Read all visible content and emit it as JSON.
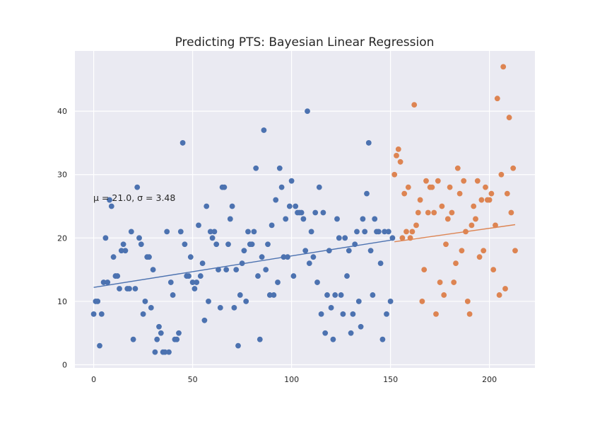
{
  "chart_data": {
    "type": "scatter",
    "title": "Predicting PTS: Bayesian Linear Regression",
    "xlabel": "",
    "ylabel": "",
    "xlim": [
      -9.5,
      223
    ],
    "ylim": [
      -0.5,
      49.5
    ],
    "xticks": [
      0,
      50,
      100,
      150,
      200
    ],
    "yticks": [
      0,
      10,
      20,
      30,
      40
    ],
    "grid": true,
    "background": "#EAEAF2",
    "annotation": "μ = 21.0,  σ = 3.48",
    "series": [
      {
        "color": "#4C72B0",
        "points": [
          [
            0,
            8
          ],
          [
            1,
            10
          ],
          [
            2,
            10
          ],
          [
            3,
            3
          ],
          [
            4,
            8
          ],
          [
            5,
            13
          ],
          [
            6,
            20
          ],
          [
            7,
            13
          ],
          [
            8,
            26
          ],
          [
            9,
            25
          ],
          [
            10,
            17
          ],
          [
            11,
            14
          ],
          [
            12,
            14
          ],
          [
            13,
            12
          ],
          [
            14,
            18
          ],
          [
            15,
            19
          ],
          [
            16,
            18
          ],
          [
            17,
            12
          ],
          [
            18,
            12
          ],
          [
            19,
            21
          ],
          [
            20,
            4
          ],
          [
            21,
            12
          ],
          [
            22,
            28
          ],
          [
            23,
            20
          ],
          [
            24,
            19
          ],
          [
            25,
            8
          ],
          [
            26,
            10
          ],
          [
            27,
            17
          ],
          [
            28,
            17
          ],
          [
            29,
            9
          ],
          [
            30,
            15
          ],
          [
            31,
            2
          ],
          [
            32,
            4
          ],
          [
            33,
            6
          ],
          [
            34,
            5
          ],
          [
            35,
            2
          ],
          [
            36,
            2
          ],
          [
            37,
            21
          ],
          [
            38,
            2
          ],
          [
            39,
            13
          ],
          [
            40,
            11
          ],
          [
            41,
            4
          ],
          [
            42,
            4
          ],
          [
            43,
            5
          ],
          [
            44,
            21
          ],
          [
            45,
            35
          ],
          [
            46,
            19
          ],
          [
            47,
            14
          ],
          [
            48,
            14
          ],
          [
            49,
            17
          ],
          [
            50,
            13
          ],
          [
            51,
            12
          ],
          [
            52,
            13
          ],
          [
            53,
            22
          ],
          [
            54,
            14
          ],
          [
            55,
            16
          ],
          [
            56,
            7
          ],
          [
            57,
            25
          ],
          [
            58,
            10
          ],
          [
            59,
            21
          ],
          [
            60,
            20
          ],
          [
            61,
            21
          ],
          [
            62,
            19
          ],
          [
            63,
            15
          ],
          [
            64,
            9
          ],
          [
            65,
            28
          ],
          [
            66,
            28
          ],
          [
            67,
            15
          ],
          [
            68,
            19
          ],
          [
            69,
            23
          ],
          [
            70,
            25
          ],
          [
            71,
            9
          ],
          [
            72,
            15
          ],
          [
            73,
            3
          ],
          [
            74,
            11
          ],
          [
            75,
            16
          ],
          [
            76,
            18
          ],
          [
            77,
            10
          ],
          [
            78,
            21
          ],
          [
            79,
            19
          ],
          [
            80,
            19
          ],
          [
            81,
            21
          ],
          [
            82,
            31
          ],
          [
            83,
            14
          ],
          [
            84,
            4
          ],
          [
            85,
            17
          ],
          [
            86,
            37
          ],
          [
            87,
            15
          ],
          [
            88,
            19
          ],
          [
            89,
            11
          ],
          [
            90,
            22
          ],
          [
            91,
            11
          ],
          [
            92,
            26
          ],
          [
            93,
            13
          ],
          [
            94,
            31
          ],
          [
            95,
            28
          ],
          [
            96,
            17
          ],
          [
            97,
            23
          ],
          [
            98,
            17
          ],
          [
            99,
            25
          ],
          [
            100,
            29
          ],
          [
            101,
            14
          ],
          [
            102,
            25
          ],
          [
            103,
            24
          ],
          [
            104,
            24
          ],
          [
            105,
            24
          ],
          [
            106,
            23
          ],
          [
            107,
            18
          ],
          [
            108,
            40
          ],
          [
            109,
            16
          ],
          [
            110,
            21
          ],
          [
            111,
            17
          ],
          [
            112,
            24
          ],
          [
            113,
            13
          ],
          [
            114,
            28
          ],
          [
            115,
            8
          ],
          [
            116,
            24
          ],
          [
            117,
            5
          ],
          [
            118,
            11
          ],
          [
            119,
            18
          ],
          [
            120,
            9
          ],
          [
            121,
            4
          ],
          [
            122,
            11
          ],
          [
            123,
            23
          ],
          [
            124,
            20
          ],
          [
            125,
            11
          ],
          [
            126,
            8
          ],
          [
            127,
            20
          ],
          [
            128,
            14
          ],
          [
            129,
            18
          ],
          [
            130,
            5
          ],
          [
            131,
            8
          ],
          [
            132,
            19
          ],
          [
            133,
            21
          ],
          [
            134,
            10
          ],
          [
            135,
            6
          ],
          [
            136,
            23
          ],
          [
            137,
            21
          ],
          [
            138,
            27
          ],
          [
            139,
            35
          ],
          [
            140,
            18
          ],
          [
            141,
            11
          ],
          [
            142,
            23
          ],
          [
            143,
            21
          ],
          [
            144,
            21
          ],
          [
            145,
            16
          ],
          [
            146,
            4
          ],
          [
            147,
            21
          ],
          [
            148,
            8
          ],
          [
            149,
            21
          ],
          [
            150,
            10
          ],
          [
            151,
            20
          ]
        ],
        "fit": [
          [
            0,
            12.2
          ],
          [
            151,
            19.7
          ]
        ]
      },
      {
        "color": "#DD8452",
        "points": [
          [
            152,
            30
          ],
          [
            153,
            33
          ],
          [
            154,
            34
          ],
          [
            155,
            32
          ],
          [
            156,
            20
          ],
          [
            157,
            27
          ],
          [
            158,
            21
          ],
          [
            159,
            28
          ],
          [
            160,
            20
          ],
          [
            161,
            21
          ],
          [
            162,
            41
          ],
          [
            163,
            22
          ],
          [
            164,
            24
          ],
          [
            165,
            26
          ],
          [
            166,
            10
          ],
          [
            167,
            15
          ],
          [
            168,
            29
          ],
          [
            169,
            24
          ],
          [
            170,
            28
          ],
          [
            171,
            28
          ],
          [
            172,
            24
          ],
          [
            173,
            8
          ],
          [
            174,
            29
          ],
          [
            175,
            13
          ],
          [
            176,
            25
          ],
          [
            177,
            11
          ],
          [
            178,
            19
          ],
          [
            179,
            23
          ],
          [
            180,
            28
          ],
          [
            181,
            24
          ],
          [
            182,
            13
          ],
          [
            183,
            16
          ],
          [
            184,
            31
          ],
          [
            185,
            27
          ],
          [
            186,
            18
          ],
          [
            187,
            29
          ],
          [
            188,
            21
          ],
          [
            189,
            10
          ],
          [
            190,
            8
          ],
          [
            191,
            22
          ],
          [
            192,
            25
          ],
          [
            193,
            23
          ],
          [
            194,
            29
          ],
          [
            195,
            17
          ],
          [
            196,
            26
          ],
          [
            197,
            18
          ],
          [
            198,
            28
          ],
          [
            199,
            26
          ],
          [
            200,
            26
          ],
          [
            201,
            27
          ],
          [
            202,
            15
          ],
          [
            203,
            22
          ],
          [
            204,
            42
          ],
          [
            205,
            11
          ],
          [
            206,
            30
          ],
          [
            207,
            47
          ],
          [
            208,
            12
          ],
          [
            209,
            27
          ],
          [
            210,
            39
          ],
          [
            211,
            24
          ],
          [
            212,
            31
          ],
          [
            213,
            18
          ]
        ],
        "fit": [
          [
            152,
            19.4
          ],
          [
            213,
            22.1
          ]
        ]
      }
    ]
  }
}
